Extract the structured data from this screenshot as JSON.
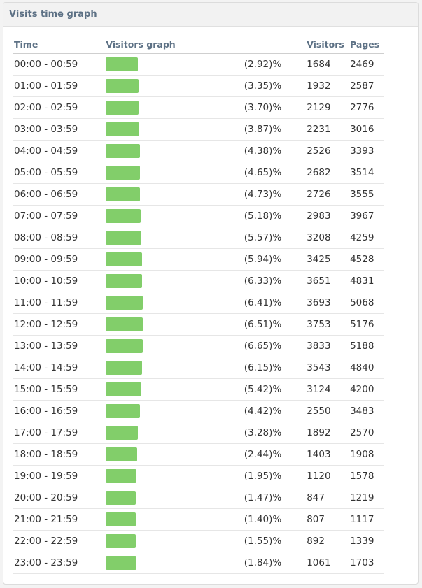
{
  "panel": {
    "title": "Visits time graph"
  },
  "table": {
    "headers": {
      "time": "Time",
      "graph": "Visitors graph",
      "percent": "",
      "visitors": "Visitors",
      "pages": "Pages"
    },
    "bar_color": "#82ce6a",
    "rows": [
      {
        "time": "00:00 - 00:59",
        "percent": "(2.92)%",
        "visitors": "1684",
        "pages": "2469",
        "share": 2.92
      },
      {
        "time": "01:00 - 01:59",
        "percent": "(3.35)%",
        "visitors": "1932",
        "pages": "2587",
        "share": 3.35
      },
      {
        "time": "02:00 - 02:59",
        "percent": "(3.70)%",
        "visitors": "2129",
        "pages": "2776",
        "share": 3.7
      },
      {
        "time": "03:00 - 03:59",
        "percent": "(3.87)%",
        "visitors": "2231",
        "pages": "3016",
        "share": 3.87
      },
      {
        "time": "04:00 - 04:59",
        "percent": "(4.38)%",
        "visitors": "2526",
        "pages": "3393",
        "share": 4.38
      },
      {
        "time": "05:00 - 05:59",
        "percent": "(4.65)%",
        "visitors": "2682",
        "pages": "3514",
        "share": 4.65
      },
      {
        "time": "06:00 - 06:59",
        "percent": "(4.73)%",
        "visitors": "2726",
        "pages": "3555",
        "share": 4.73
      },
      {
        "time": "07:00 - 07:59",
        "percent": "(5.18)%",
        "visitors": "2983",
        "pages": "3967",
        "share": 5.18
      },
      {
        "time": "08:00 - 08:59",
        "percent": "(5.57)%",
        "visitors": "3208",
        "pages": "4259",
        "share": 5.57
      },
      {
        "time": "09:00 - 09:59",
        "percent": "(5.94)%",
        "visitors": "3425",
        "pages": "4528",
        "share": 5.94
      },
      {
        "time": "10:00 - 10:59",
        "percent": "(6.33)%",
        "visitors": "3651",
        "pages": "4831",
        "share": 6.33
      },
      {
        "time": "11:00 - 11:59",
        "percent": "(6.41)%",
        "visitors": "3693",
        "pages": "5068",
        "share": 6.41
      },
      {
        "time": "12:00 - 12:59",
        "percent": "(6.51)%",
        "visitors": "3753",
        "pages": "5176",
        "share": 6.51
      },
      {
        "time": "13:00 - 13:59",
        "percent": "(6.65)%",
        "visitors": "3833",
        "pages": "5188",
        "share": 6.65
      },
      {
        "time": "14:00 - 14:59",
        "percent": "(6.15)%",
        "visitors": "3543",
        "pages": "4840",
        "share": 6.15
      },
      {
        "time": "15:00 - 15:59",
        "percent": "(5.42)%",
        "visitors": "3124",
        "pages": "4200",
        "share": 5.42
      },
      {
        "time": "16:00 - 16:59",
        "percent": "(4.42)%",
        "visitors": "2550",
        "pages": "3483",
        "share": 4.42
      },
      {
        "time": "17:00 - 17:59",
        "percent": "(3.28)%",
        "visitors": "1892",
        "pages": "2570",
        "share": 3.28
      },
      {
        "time": "18:00 - 18:59",
        "percent": "(2.44)%",
        "visitors": "1403",
        "pages": "1908",
        "share": 2.44
      },
      {
        "time": "19:00 - 19:59",
        "percent": "(1.95)%",
        "visitors": "1120",
        "pages": "1578",
        "share": 1.95
      },
      {
        "time": "20:00 - 20:59",
        "percent": "(1.47)%",
        "visitors": "847",
        "pages": "1219",
        "share": 1.47
      },
      {
        "time": "21:00 - 21:59",
        "percent": "(1.40)%",
        "visitors": "807",
        "pages": "1117",
        "share": 1.4
      },
      {
        "time": "22:00 - 22:59",
        "percent": "(1.55)%",
        "visitors": "892",
        "pages": "1339",
        "share": 1.55
      },
      {
        "time": "23:00 - 23:59",
        "percent": "(1.84)%",
        "visitors": "1061",
        "pages": "1703",
        "share": 1.84
      }
    ]
  }
}
